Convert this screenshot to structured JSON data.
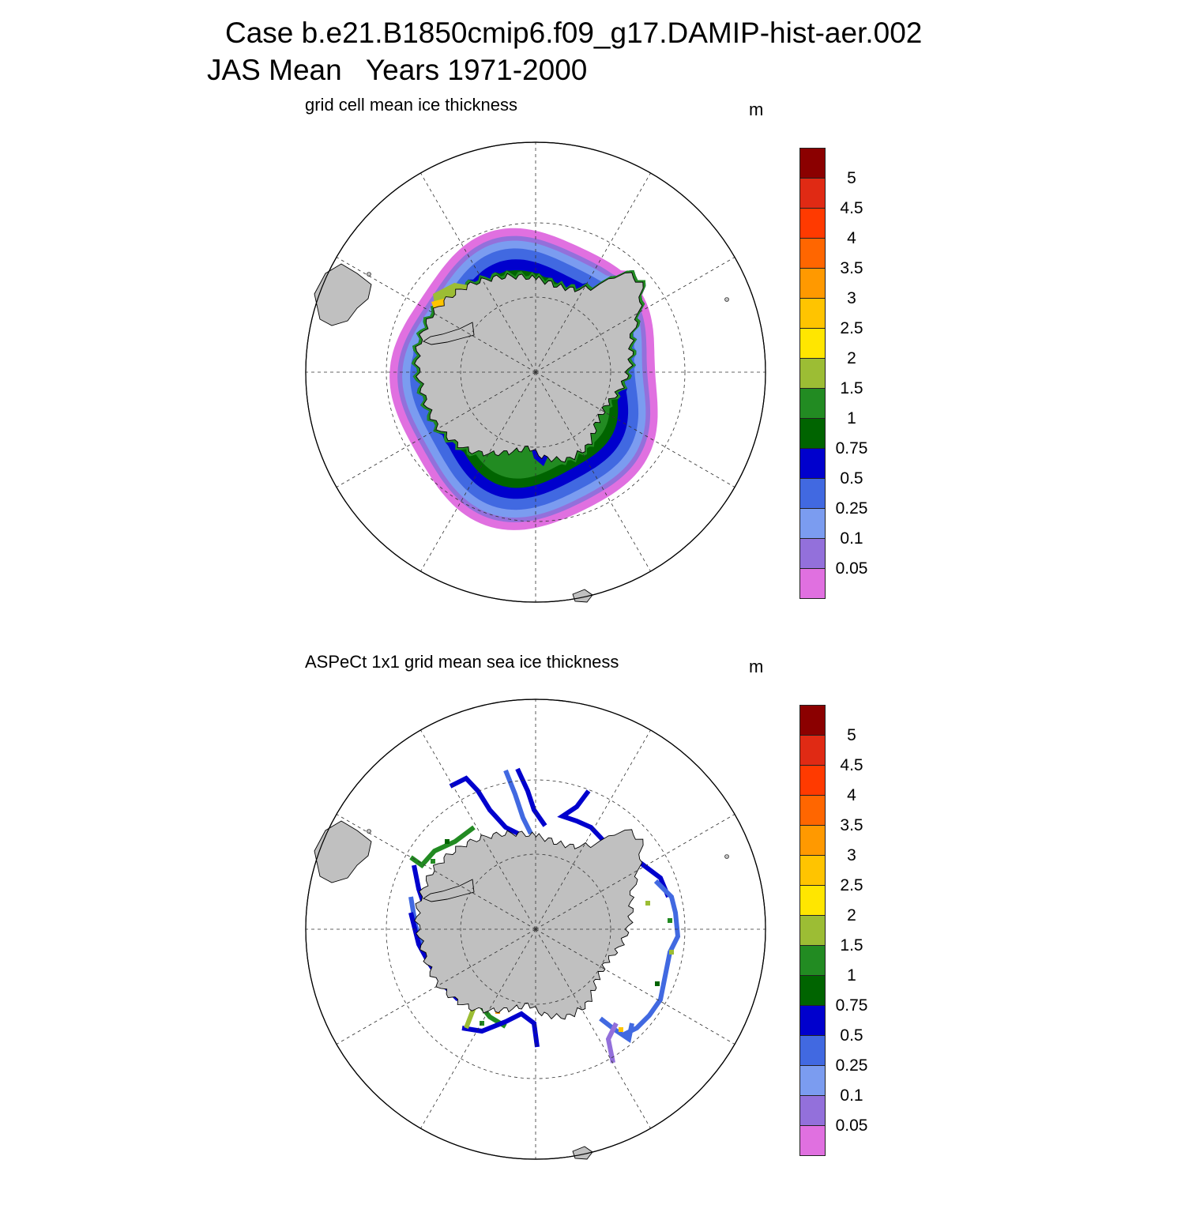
{
  "figure": {
    "title_line1": "Case b.e21.B1850cmip6.f09_g17.DAMIP-hist-aer.002",
    "title_line2": "JAS Mean   Years 1971-2000"
  },
  "chart_data": [
    {
      "type": "heatmap",
      "projection": "south-polar-stereographic",
      "title": "grid cell mean ice thickness",
      "units": "m",
      "colorbar": {
        "levels": [
          "5",
          "4.5",
          "4",
          "3.5",
          "3",
          "2.5",
          "2",
          "1.5",
          "1",
          "0.75",
          "0.5",
          "0.25",
          "0.1",
          "0.05"
        ],
        "colors": [
          "#8b0000",
          "#e02a14",
          "#ff3a00",
          "#ff6600",
          "#ff9900",
          "#ffc400",
          "#ffe600",
          "#9cbd34",
          "#228b22",
          "#006400",
          "#0000cd",
          "#4169e1",
          "#7b9cf0",
          "#9370db",
          "#e070e0"
        ]
      },
      "land_color": "#c0c0c0",
      "ice_extent_lat_min": -58
    },
    {
      "type": "heatmap",
      "projection": "south-polar-stereographic",
      "title": "ASPeCt 1x1 grid mean sea ice thickness",
      "units": "m",
      "colorbar": {
        "levels": [
          "5",
          "4.5",
          "4",
          "3.5",
          "3",
          "2.5",
          "2",
          "1.5",
          "1",
          "0.75",
          "0.5",
          "0.25",
          "0.1",
          "0.05"
        ],
        "colors": [
          "#8b0000",
          "#e02a14",
          "#ff3a00",
          "#ff6600",
          "#ff9900",
          "#ffc400",
          "#ffe600",
          "#9cbd34",
          "#228b22",
          "#006400",
          "#0000cd",
          "#4169e1",
          "#7b9cf0",
          "#9370db",
          "#e070e0"
        ]
      },
      "land_color": "#c0c0c0",
      "observation_type": "ship-track transects"
    }
  ]
}
